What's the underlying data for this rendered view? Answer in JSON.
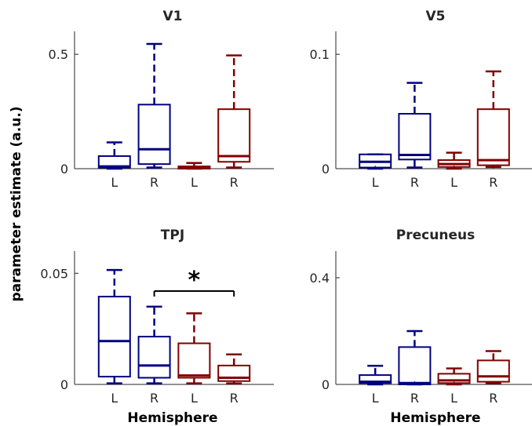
{
  "ylabel": "parameter estimate (a.u.)",
  "colors": {
    "left_hemisphere": "#000080",
    "right_hemisphere": "#800000",
    "axis": "#262626"
  },
  "chart_data": [
    {
      "type": "box",
      "title": "V1",
      "xlabel": "",
      "ylim": [
        0,
        0.6
      ],
      "yticks": [
        0,
        0.5
      ],
      "ytick_labels": [
        "0",
        "0.5"
      ],
      "categories": [
        "L",
        "R",
        "L",
        "R"
      ],
      "boxes": [
        {
          "label": "L",
          "color": "#000080",
          "whisker_low": 0.0,
          "q1": 0.005,
          "median": 0.01,
          "q3": 0.055,
          "whisker_high": 0.115
        },
        {
          "label": "R",
          "color": "#000080",
          "whisker_low": 0.005,
          "q1": 0.02,
          "median": 0.085,
          "q3": 0.28,
          "whisker_high": 0.545
        },
        {
          "label": "L",
          "color": "#800000",
          "whisker_low": 0.0,
          "q1": 0.0,
          "median": 0.005,
          "q3": 0.01,
          "whisker_high": 0.025
        },
        {
          "label": "R",
          "color": "#800000",
          "whisker_low": 0.005,
          "q1": 0.03,
          "median": 0.055,
          "q3": 0.26,
          "whisker_high": 0.495
        }
      ]
    },
    {
      "type": "box",
      "title": "V5",
      "xlabel": "",
      "ylim": [
        0,
        0.12
      ],
      "yticks": [
        0,
        0.1
      ],
      "ytick_labels": [
        "0",
        "0.1"
      ],
      "categories": [
        "L",
        "R",
        "L",
        "R"
      ],
      "boxes": [
        {
          "label": "L",
          "color": "#000080",
          "whisker_low": 0.0,
          "q1": 0.001,
          "median": 0.006,
          "q3": 0.0125,
          "whisker_high": 0.0125
        },
        {
          "label": "R",
          "color": "#000080",
          "whisker_low": 0.001,
          "q1": 0.008,
          "median": 0.012,
          "q3": 0.048,
          "whisker_high": 0.075
        },
        {
          "label": "L",
          "color": "#800000",
          "whisker_low": 0.0,
          "q1": 0.0015,
          "median": 0.004,
          "q3": 0.0075,
          "whisker_high": 0.014
        },
        {
          "label": "R",
          "color": "#800000",
          "whisker_low": 0.0015,
          "q1": 0.003,
          "median": 0.0075,
          "q3": 0.052,
          "whisker_high": 0.085
        }
      ]
    },
    {
      "type": "box",
      "title": "TPJ",
      "xlabel": "Hemisphere",
      "ylim": [
        0,
        0.06
      ],
      "yticks": [
        0,
        0.05
      ],
      "ytick_labels": [
        "0",
        "0.05"
      ],
      "categories": [
        "L",
        "R",
        "L",
        "R"
      ],
      "boxes": [
        {
          "label": "L",
          "color": "#000080",
          "whisker_low": 0.0005,
          "q1": 0.0035,
          "median": 0.0195,
          "q3": 0.0395,
          "whisker_high": 0.0515
        },
        {
          "label": "R",
          "color": "#000080",
          "whisker_low": 0.0005,
          "q1": 0.003,
          "median": 0.0085,
          "q3": 0.0215,
          "whisker_high": 0.035
        },
        {
          "label": "L",
          "color": "#800000",
          "whisker_low": 0.0005,
          "q1": 0.003,
          "median": 0.004,
          "q3": 0.0185,
          "whisker_high": 0.032
        },
        {
          "label": "R",
          "color": "#800000",
          "whisker_low": 0.0005,
          "q1": 0.0015,
          "median": 0.003,
          "q3": 0.0085,
          "whisker_high": 0.0135
        }
      ],
      "annotation": {
        "text": "*",
        "from_box": 1,
        "to_box": 3,
        "y": 0.042
      }
    },
    {
      "type": "box",
      "title": "Precuneus",
      "xlabel": "Hemisphere",
      "ylim": [
        0,
        0.5
      ],
      "yticks": [
        0,
        0.4
      ],
      "ytick_labels": [
        "0",
        "0.4"
      ],
      "categories": [
        "L",
        "R",
        "L",
        "R"
      ],
      "boxes": [
        {
          "label": "L",
          "color": "#000080",
          "whisker_low": 0.0,
          "q1": 0.005,
          "median": 0.01,
          "q3": 0.035,
          "whisker_high": 0.07
        },
        {
          "label": "R",
          "color": "#000080",
          "whisker_low": 0.0,
          "q1": 0.0,
          "median": 0.005,
          "q3": 0.14,
          "whisker_high": 0.2
        },
        {
          "label": "L",
          "color": "#800000",
          "whisker_low": 0.0,
          "q1": 0.005,
          "median": 0.015,
          "q3": 0.04,
          "whisker_high": 0.06
        },
        {
          "label": "R",
          "color": "#800000",
          "whisker_low": 0.005,
          "q1": 0.01,
          "median": 0.03,
          "q3": 0.09,
          "whisker_high": 0.125
        }
      ]
    }
  ]
}
